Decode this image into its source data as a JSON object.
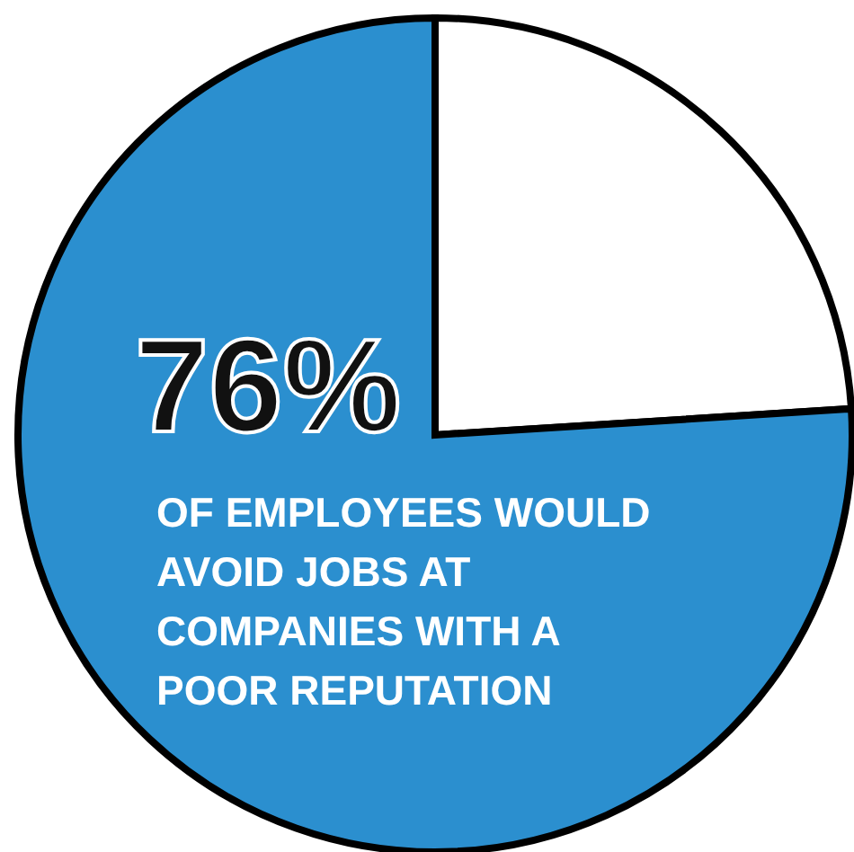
{
  "chart_data": {
    "type": "pie",
    "categories": [
      null,
      null
    ],
    "values": [
      24,
      76
    ],
    "colors": [
      "#ffffff",
      "#2b8fcf"
    ],
    "value_labels": [
      null,
      "76%"
    ],
    "annotations": [
      "OF EMPLOYEES WOULD AVOID JOBS AT COMPANIES WITH A POOR REPUTATION"
    ]
  }
}
